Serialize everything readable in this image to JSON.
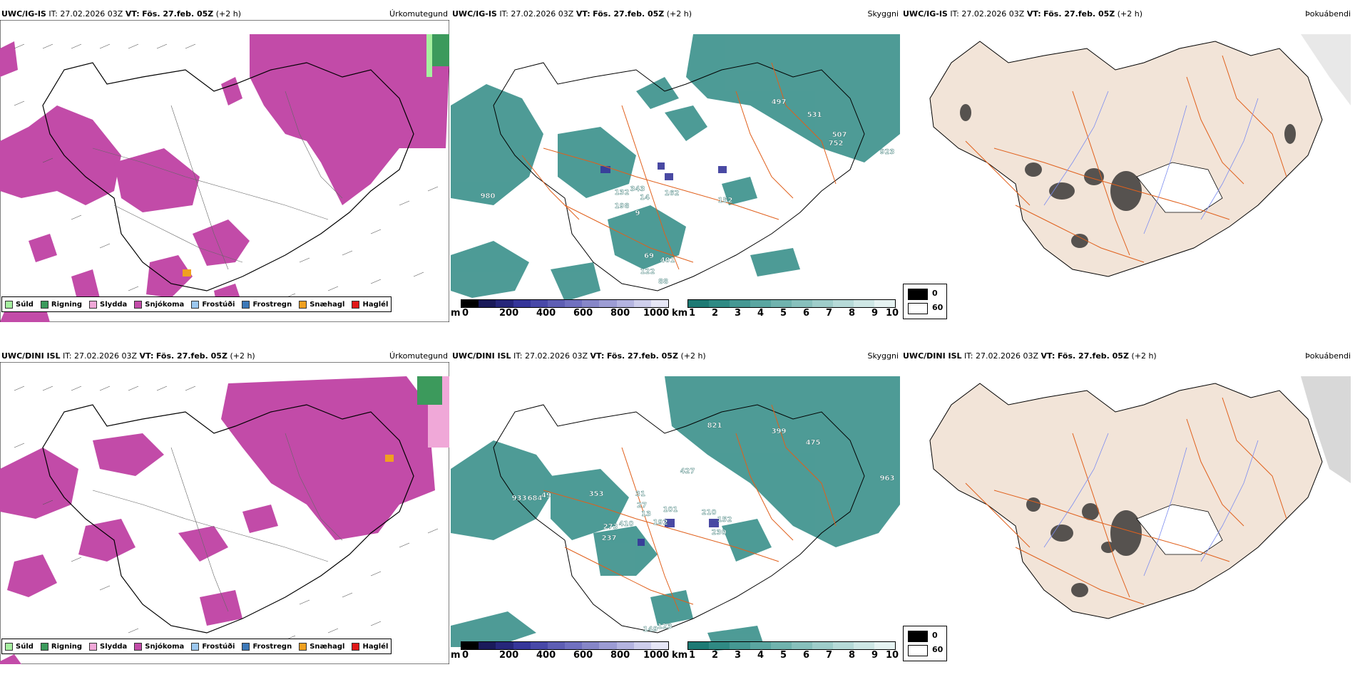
{
  "rows": [
    {
      "model": "UWC/IG-IS",
      "it_label": "IT:",
      "it_value": "27.02.2026 03Z",
      "vt_label": "VT:",
      "vt_value": "Fös. 27.feb. 05Z",
      "lead": "(+2 h)",
      "panels": {
        "precip": {
          "title": "Úrkomutegund"
        },
        "cloud": {
          "title": "Skyggni",
          "labels": [
            "497",
            "531",
            "507",
            "752",
            "923",
            "980",
            "132",
            "343",
            "14",
            "162",
            "198",
            "9",
            "152",
            "401",
            "69",
            "122",
            "88"
          ]
        },
        "fog": {
          "title": "Þokuábendi"
        }
      }
    },
    {
      "model": "UWC/DINI ISL",
      "it_label": "IT:",
      "it_value": "27.02.2026 03Z",
      "vt_label": "VT:",
      "vt_value": "Fös. 27.feb. 05Z",
      "lead": "(+2 h)",
      "panels": {
        "precip": {
          "title": "Úrkomutegund"
        },
        "cloud": {
          "title": "Skyggni",
          "labels": [
            "821",
            "399",
            "475",
            "427",
            "963",
            "933",
            "684",
            "49",
            "353",
            "31",
            "101",
            "210",
            "152",
            "27",
            "13",
            "192",
            "273",
            "410",
            "237",
            "230",
            "123",
            "149"
          ]
        },
        "fog": {
          "title": "Þokuábendi"
        }
      }
    }
  ],
  "precip_legend": [
    {
      "label": "Súld",
      "color": "#a6f0a0"
    },
    {
      "label": "Rigning",
      "color": "#3c9a5c"
    },
    {
      "label": "Slydda",
      "color": "#f0a8d8"
    },
    {
      "label": "Snjókoma",
      "color": "#c24ba8"
    },
    {
      "label": "Frostúði",
      "color": "#9cc8f0"
    },
    {
      "label": "Frostregn",
      "color": "#3c78b8"
    },
    {
      "label": "Snæhagl",
      "color": "#f0a020"
    },
    {
      "label": "Haglél",
      "color": "#e01818"
    }
  ],
  "cloudbase_bar": {
    "unit": "m",
    "ticks": [
      "0",
      "200",
      "400",
      "600",
      "800",
      "1000"
    ],
    "colors": [
      "#000000",
      "#1a1a5a",
      "#26267a",
      "#36369a",
      "#4848a8",
      "#5e5eb4",
      "#7070c0",
      "#8686c8",
      "#9c9cd4",
      "#b4b4e0",
      "#ceceec",
      "#e6e6f6"
    ]
  },
  "visibility_bar": {
    "unit": "km",
    "ticks": [
      "1",
      "2",
      "3",
      "4",
      "5",
      "6",
      "7",
      "8",
      "9",
      "10"
    ],
    "colors": [
      "#1d7a74",
      "#2f8a84",
      "#459893",
      "#5aa6a1",
      "#70b3ae",
      "#87c0bc",
      "#9ecdca",
      "#b6dad8",
      "#cee7e5",
      "#e6f3f2"
    ]
  },
  "fog_legend": {
    "min": "0",
    "max": "60"
  },
  "colors": {
    "snow": "#c24ba8",
    "cloud": "#2f8a84",
    "land": "#f2e4d8",
    "roads": "#e0601c",
    "rivers": "#7c8cf0"
  }
}
